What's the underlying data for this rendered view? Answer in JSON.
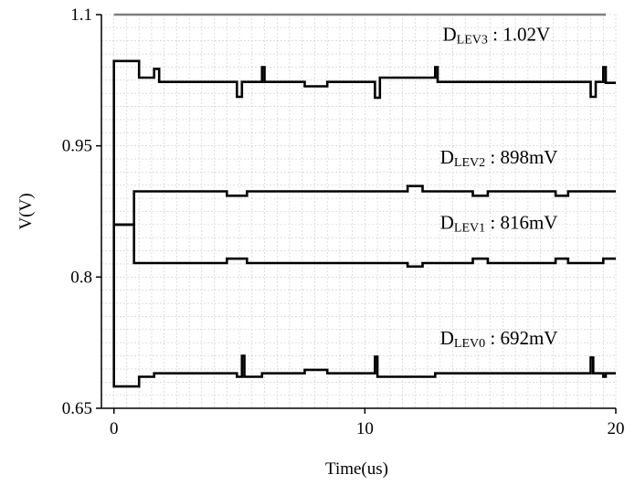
{
  "chart_data": {
    "type": "line",
    "title": "",
    "xlabel": "Time(us)",
    "ylabel": "V(V)",
    "xlim": [
      -0.5,
      20
    ],
    "ylim": [
      0.65,
      1.1
    ],
    "x_ticks": [
      0,
      10,
      20
    ],
    "x_tick_labels": [
      "0",
      "10",
      "20"
    ],
    "y_ticks": [
      0.65,
      0.8,
      0.95,
      1.1
    ],
    "y_tick_labels": [
      "0.65",
      "0.8",
      "0.95",
      "1.1"
    ],
    "grid": true,
    "line_color": "#000000",
    "grid_color": "#c8c8c8",
    "top_line_color": "#7f7f7f",
    "series": [
      {
        "label": "DLEV3",
        "points": [
          [
            0,
            0.86
          ],
          [
            0,
            1.047
          ],
          [
            1,
            1.047
          ],
          [
            1,
            1.028
          ],
          [
            1.6,
            1.028
          ],
          [
            1.6,
            1.038
          ],
          [
            1.8,
            1.038
          ],
          [
            1.8,
            1.023
          ],
          [
            4.9,
            1.023
          ],
          [
            4.9,
            1.006
          ],
          [
            5.1,
            1.006
          ],
          [
            5.1,
            1.023
          ],
          [
            5.9,
            1.023
          ],
          [
            5.9,
            1.04
          ],
          [
            6.0,
            1.04
          ],
          [
            6.0,
            1.023
          ],
          [
            7.6,
            1.023
          ],
          [
            7.6,
            1.018
          ],
          [
            8.5,
            1.018
          ],
          [
            8.5,
            1.023
          ],
          [
            10.4,
            1.023
          ],
          [
            10.4,
            1.005
          ],
          [
            10.6,
            1.005
          ],
          [
            10.6,
            1.028
          ],
          [
            12.8,
            1.028
          ],
          [
            12.8,
            1.04
          ],
          [
            12.9,
            1.04
          ],
          [
            12.9,
            1.023
          ],
          [
            19.0,
            1.023
          ],
          [
            19.0,
            1.006
          ],
          [
            19.2,
            1.006
          ],
          [
            19.2,
            1.023
          ],
          [
            19.5,
            1.023
          ],
          [
            19.5,
            1.04
          ],
          [
            19.6,
            1.04
          ],
          [
            19.6,
            1.022
          ],
          [
            20,
            1.022
          ]
        ],
        "annotation": {
          "main": "D",
          "sub": "LEV3",
          "value": " : 1.02V",
          "x": 13.1,
          "y": 1.07
        }
      },
      {
        "label": "DLEV2",
        "points": [
          [
            0,
            0.86
          ],
          [
            0.8,
            0.86
          ],
          [
            0.8,
            0.898
          ],
          [
            4.5,
            0.898
          ],
          [
            4.5,
            0.893
          ],
          [
            5.3,
            0.893
          ],
          [
            5.3,
            0.898
          ],
          [
            11.7,
            0.898
          ],
          [
            11.7,
            0.904
          ],
          [
            12.3,
            0.904
          ],
          [
            12.3,
            0.898
          ],
          [
            14.3,
            0.898
          ],
          [
            14.3,
            0.893
          ],
          [
            14.9,
            0.893
          ],
          [
            14.9,
            0.898
          ],
          [
            17.6,
            0.898
          ],
          [
            17.6,
            0.893
          ],
          [
            18.1,
            0.893
          ],
          [
            18.1,
            0.898
          ],
          [
            20,
            0.898
          ]
        ],
        "annotation": {
          "main": "D",
          "sub": "LEV2",
          "value": " : 898mV",
          "x": 13.0,
          "y": 0.93
        }
      },
      {
        "label": "DLEV1",
        "points": [
          [
            0,
            0.86
          ],
          [
            0.8,
            0.86
          ],
          [
            0.8,
            0.816
          ],
          [
            4.5,
            0.816
          ],
          [
            4.5,
            0.821
          ],
          [
            5.3,
            0.821
          ],
          [
            5.3,
            0.816
          ],
          [
            11.7,
            0.816
          ],
          [
            11.7,
            0.812
          ],
          [
            12.3,
            0.812
          ],
          [
            12.3,
            0.816
          ],
          [
            14.3,
            0.816
          ],
          [
            14.3,
            0.821
          ],
          [
            14.9,
            0.821
          ],
          [
            14.9,
            0.816
          ],
          [
            17.6,
            0.816
          ],
          [
            17.6,
            0.821
          ],
          [
            18.1,
            0.821
          ],
          [
            18.1,
            0.816
          ],
          [
            19.5,
            0.816
          ],
          [
            19.5,
            0.821
          ],
          [
            20,
            0.821
          ]
        ],
        "annotation": {
          "main": "D",
          "sub": "LEV1",
          "value": " : 816mV",
          "x": 13.0,
          "y": 0.855
        }
      },
      {
        "label": "DLEV0",
        "points": [
          [
            0,
            0.86
          ],
          [
            0,
            0.675
          ],
          [
            1,
            0.675
          ],
          [
            1,
            0.686
          ],
          [
            1.6,
            0.686
          ],
          [
            1.6,
            0.69
          ],
          [
            4.9,
            0.69
          ],
          [
            4.9,
            0.686
          ],
          [
            5.1,
            0.686
          ],
          [
            5.1,
            0.71
          ],
          [
            5.2,
            0.71
          ],
          [
            5.2,
            0.686
          ],
          [
            5.9,
            0.686
          ],
          [
            5.9,
            0.69
          ],
          [
            7.6,
            0.69
          ],
          [
            7.6,
            0.694
          ],
          [
            8.5,
            0.694
          ],
          [
            8.5,
            0.69
          ],
          [
            10.4,
            0.69
          ],
          [
            10.4,
            0.709
          ],
          [
            10.5,
            0.709
          ],
          [
            10.5,
            0.686
          ],
          [
            12.8,
            0.686
          ],
          [
            12.8,
            0.69
          ],
          [
            19.0,
            0.69
          ],
          [
            19.0,
            0.708
          ],
          [
            19.1,
            0.708
          ],
          [
            19.1,
            0.69
          ],
          [
            19.5,
            0.69
          ],
          [
            19.5,
            0.686
          ],
          [
            19.6,
            0.686
          ],
          [
            19.6,
            0.69
          ],
          [
            20,
            0.69
          ]
        ],
        "annotation": {
          "main": "D",
          "sub": "LEV0",
          "value": " : 692mV",
          "x": 13.0,
          "y": 0.723
        }
      }
    ],
    "top_line": {
      "points": [
        [
          0,
          1.1
        ],
        [
          19.6,
          1.1
        ]
      ]
    }
  }
}
